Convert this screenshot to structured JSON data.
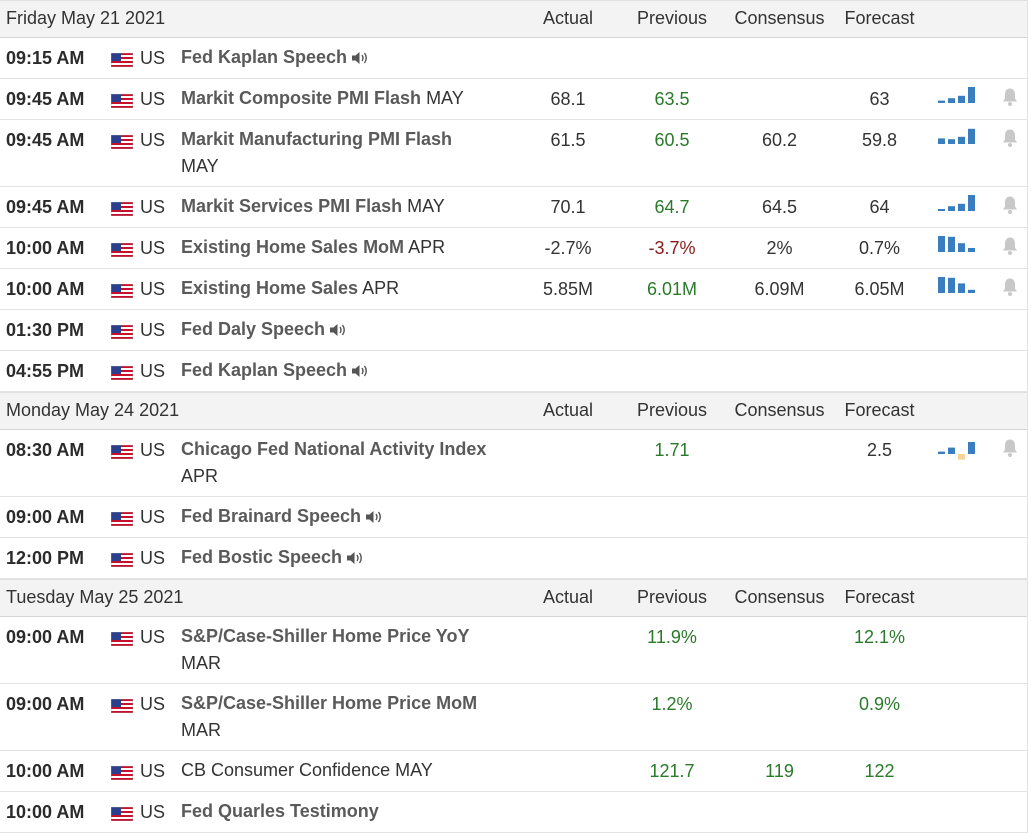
{
  "columns": {
    "actual": "Actual",
    "previous": "Previous",
    "consensus": "Consensus",
    "forecast": "Forecast"
  },
  "days": [
    {
      "title": "Friday May 21 2021",
      "events": [
        {
          "time": "09:15 AM",
          "country": "US",
          "name": "Fed Kaplan Speech",
          "period": "",
          "speech": true,
          "actual": "",
          "previous": "",
          "prev_color": "",
          "consensus": "",
          "forecast": "",
          "fore_color": "",
          "spark": null,
          "bell": false,
          "tall": false
        },
        {
          "time": "09:45 AM",
          "country": "US",
          "name": "Markit Composite PMI Flash",
          "period": "MAY",
          "speech": false,
          "actual": "68.1",
          "previous": "63.5",
          "prev_color": "green",
          "consensus": "",
          "forecast": "63",
          "fore_color": "dark",
          "spark": [
            0.15,
            0.3,
            0.45,
            1
          ],
          "bell": true,
          "tall": false
        },
        {
          "time": "09:45 AM",
          "country": "US",
          "name": "Markit Manufacturing PMI Flash",
          "period": "MAY",
          "speech": false,
          "actual": "61.5",
          "previous": "60.5",
          "prev_color": "green",
          "consensus": "60.2",
          "forecast": "59.8",
          "fore_color": "dark",
          "spark": [
            0.35,
            0.3,
            0.45,
            0.95
          ],
          "bell": true,
          "tall": true
        },
        {
          "time": "09:45 AM",
          "country": "US",
          "name": "Markit Services PMI Flash",
          "period": "MAY",
          "speech": false,
          "actual": "70.1",
          "previous": "64.7",
          "prev_color": "green",
          "consensus": "64.5",
          "forecast": "64",
          "fore_color": "dark",
          "spark": [
            0.12,
            0.3,
            0.45,
            1
          ],
          "bell": true,
          "tall": false
        },
        {
          "time": "10:00 AM",
          "country": "US",
          "name": "Existing Home Sales MoM",
          "period": "APR",
          "speech": false,
          "actual": "-2.7%",
          "previous": "-3.7%",
          "prev_color": "red",
          "consensus": "2%",
          "forecast": "0.7%",
          "fore_color": "dark",
          "spark": [
            1,
            0.95,
            0.55,
            0.25
          ],
          "bell": true,
          "tall": false
        },
        {
          "time": "10:00 AM",
          "country": "US",
          "name": "Existing Home Sales",
          "period": "APR",
          "speech": false,
          "actual": "5.85M",
          "previous": "6.01M",
          "prev_color": "green",
          "consensus": "6.09M",
          "forecast": "6.05M",
          "fore_color": "dark",
          "spark": [
            1,
            0.95,
            0.6,
            0.2
          ],
          "bell": true,
          "tall": false
        },
        {
          "time": "01:30 PM",
          "country": "US",
          "name": "Fed Daly Speech",
          "period": "",
          "speech": true,
          "actual": "",
          "previous": "",
          "prev_color": "",
          "consensus": "",
          "forecast": "",
          "fore_color": "",
          "spark": null,
          "bell": false,
          "tall": false
        },
        {
          "time": "04:55 PM",
          "country": "US",
          "name": "Fed Kaplan Speech",
          "period": "",
          "speech": true,
          "actual": "",
          "previous": "",
          "prev_color": "",
          "consensus": "",
          "forecast": "",
          "fore_color": "",
          "spark": null,
          "bell": false,
          "tall": false
        }
      ]
    },
    {
      "title": "Monday May 24 2021",
      "events": [
        {
          "time": "08:30 AM",
          "country": "US",
          "name": "Chicago Fed National Activity Index",
          "period": "APR",
          "speech": false,
          "actual": "",
          "previous": "1.71",
          "prev_color": "green",
          "consensus": "",
          "forecast": "2.5",
          "fore_color": "dark",
          "spark": [
            0.15,
            0.4,
            -0.35,
            0.75
          ],
          "bell": true,
          "tall": true
        },
        {
          "time": "09:00 AM",
          "country": "US",
          "name": "Fed Brainard Speech",
          "period": "",
          "speech": true,
          "actual": "",
          "previous": "",
          "prev_color": "",
          "consensus": "",
          "forecast": "",
          "fore_color": "",
          "spark": null,
          "bell": false,
          "tall": false
        },
        {
          "time": "12:00 PM",
          "country": "US",
          "name": "Fed Bostic Speech",
          "period": "",
          "speech": true,
          "actual": "",
          "previous": "",
          "prev_color": "",
          "consensus": "",
          "forecast": "",
          "fore_color": "",
          "spark": null,
          "bell": false,
          "tall": false
        }
      ]
    },
    {
      "title": "Tuesday May 25 2021",
      "events": [
        {
          "time": "09:00 AM",
          "country": "US",
          "name": "S&P/Case-Shiller Home Price YoY",
          "period": "MAR",
          "speech": false,
          "actual": "",
          "previous": "11.9%",
          "prev_color": "green",
          "consensus": "",
          "forecast": "12.1%",
          "fore_color": "green",
          "spark": null,
          "bell": false,
          "tall": true
        },
        {
          "time": "09:00 AM",
          "country": "US",
          "name": "S&P/Case-Shiller Home Price MoM",
          "period": "MAR",
          "speech": false,
          "actual": "",
          "previous": "1.2%",
          "prev_color": "green",
          "consensus": "",
          "forecast": "0.9%",
          "fore_color": "green",
          "spark": null,
          "bell": false,
          "tall": true
        },
        {
          "time": "10:00 AM",
          "country": "US",
          "name": "CB Consumer Confidence",
          "period": "MAY",
          "speech": false,
          "plain": true,
          "actual": "",
          "previous": "121.7",
          "prev_color": "green",
          "consensus": "119",
          "cons_color": "green",
          "forecast": "122",
          "fore_color": "green",
          "spark": null,
          "bell": false,
          "tall": false
        },
        {
          "time": "10:00 AM",
          "country": "US",
          "name": "Fed Quarles Testimony",
          "period": "",
          "speech": false,
          "actual": "",
          "previous": "",
          "prev_color": "",
          "consensus": "",
          "forecast": "",
          "fore_color": "",
          "spark": null,
          "bell": false,
          "tall": false
        }
      ]
    }
  ],
  "colors": {
    "spark_up": "#3a7ebf",
    "spark_neg": "#f5d39a",
    "bell": "#c8c8c8",
    "green": "#2a7a2a",
    "red": "#8a1a1a"
  },
  "icons": {
    "flag": "us-flag-icon",
    "speech": "speaker-icon",
    "alert": "bell-icon"
  }
}
